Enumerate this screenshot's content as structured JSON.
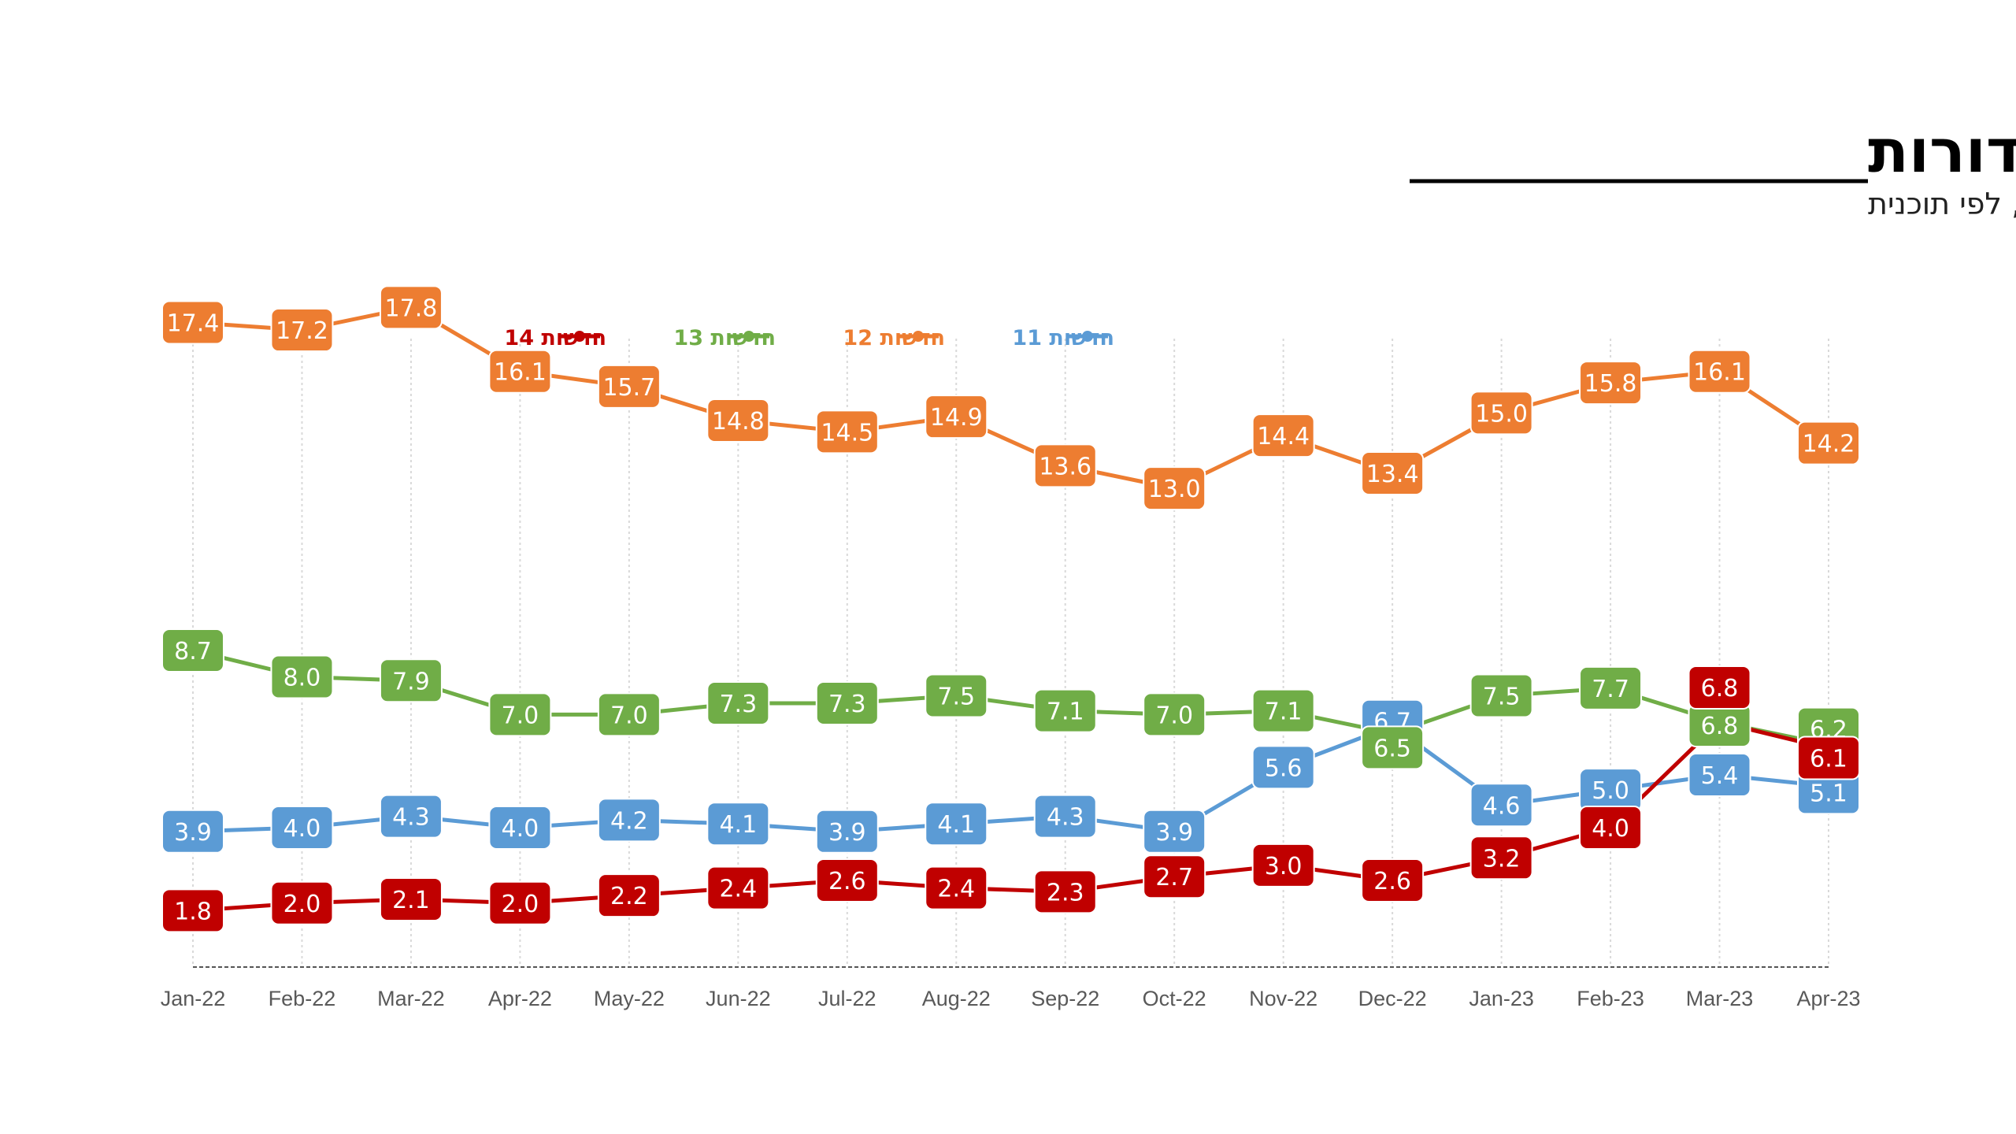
{
  "title": "רייטינג מהדורות",
  "subtitle": "ממוצע חודשי, בימי החול, לפי תוכנית",
  "chart_data": {
    "type": "line",
    "categories": [
      "Jan-22",
      "Feb-22",
      "Mar-22",
      "Apr-22",
      "May-22",
      "Jun-22",
      "Jul-22",
      "Aug-22",
      "Sep-22",
      "Oct-22",
      "Nov-22",
      "Dec-22",
      "Jan-23",
      "Feb-23",
      "Mar-23",
      "Apr-23"
    ],
    "ylim": [
      0,
      19
    ],
    "grid": "vertical-dotted",
    "legend_position": "top",
    "series": [
      {
        "name": "חדשות 11",
        "color": "#5b9bd5",
        "values": [
          3.9,
          4.0,
          4.3,
          4.0,
          4.2,
          4.1,
          3.9,
          4.1,
          4.3,
          3.9,
          5.6,
          6.7,
          4.6,
          5.0,
          5.4,
          5.1
        ]
      },
      {
        "name": "חדשות 12",
        "color": "#ed7d31",
        "values": [
          17.4,
          17.2,
          17.8,
          16.1,
          15.7,
          14.8,
          14.5,
          14.9,
          13.6,
          13.0,
          14.4,
          13.4,
          15.0,
          15.8,
          16.1,
          14.2
        ]
      },
      {
        "name": "חדשות 13",
        "color": "#70ad47",
        "values": [
          8.7,
          8.0,
          7.9,
          7.0,
          7.0,
          7.3,
          7.3,
          7.5,
          7.1,
          7.0,
          7.1,
          6.5,
          7.5,
          7.7,
          6.8,
          6.2
        ]
      },
      {
        "name": "חדשות 14",
        "color": "#c00000",
        "values": [
          1.8,
          2.0,
          2.1,
          2.0,
          2.2,
          2.4,
          2.6,
          2.4,
          2.3,
          2.7,
          3.0,
          2.6,
          3.2,
          4.0,
          6.8,
          6.1
        ]
      }
    ]
  }
}
